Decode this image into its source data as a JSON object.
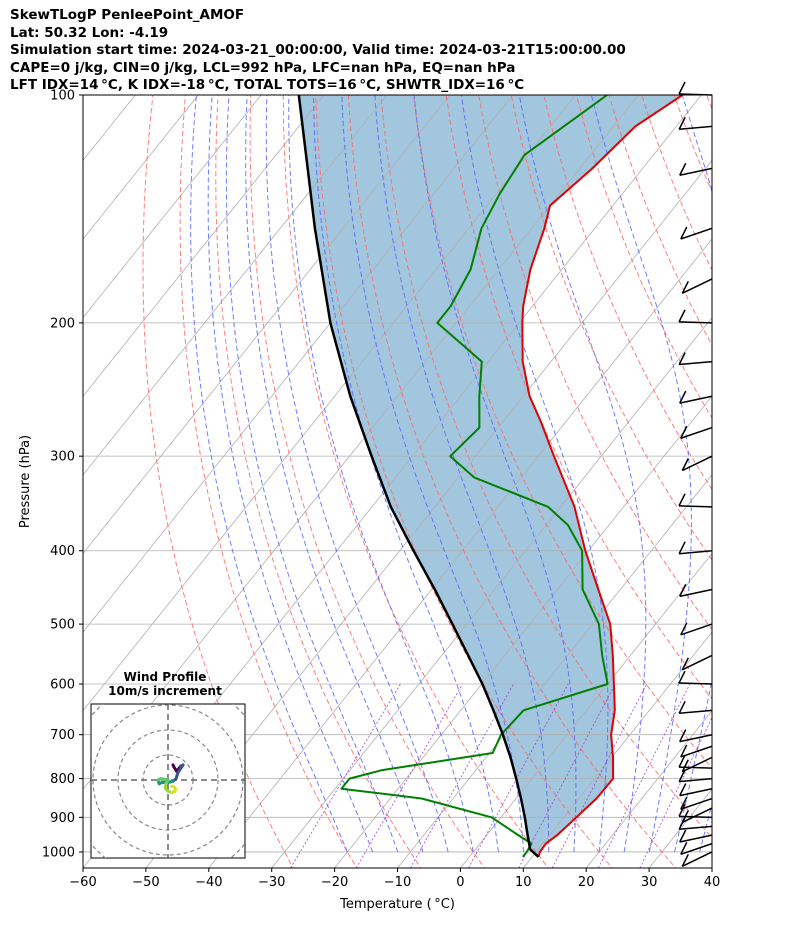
{
  "header": {
    "line1": "SkewTLogP PenleePoint_AMOF",
    "line2": "Lat: 50.32   Lon: -4.19",
    "line3": "Simulation start time: 2024-03-21_00:00:00, Valid time: 2024-03-21T15:00:00.00",
    "line4": "CAPE=0 j/kg, CIN=0 j/kg, LCL=992 hPa, LFC=nan hPa, EQ=nan hPa",
    "line5": "LFT IDX=14 °C, K IDX=-18 °C, TOTAL TOTS=16 °C, SHWTR_IDX=16 °C"
  },
  "chart_data": {
    "type": "line",
    "subtype": "skew-T log-P diagram",
    "xlabel": "Temperature ( °C)",
    "ylabel": "Pressure (hPa)",
    "xlim": [
      -60,
      40
    ],
    "ylim_hpa": [
      1050,
      100
    ],
    "y_scale": "log",
    "grid": true,
    "x_ticks": [
      "−60",
      "−50",
      "−40",
      "−30",
      "−20",
      "−10",
      "0",
      "10",
      "20",
      "30",
      "40"
    ],
    "y_ticks": [
      "100",
      "200",
      "300",
      "400",
      "500",
      "600",
      "700",
      "800",
      "900",
      "1000"
    ],
    "y_tick_values": [
      100,
      200,
      300,
      400,
      500,
      600,
      700,
      800,
      900,
      1000
    ],
    "colors": {
      "temperature": "#e00000",
      "dewpoint": "#008000",
      "parcel": "#000000",
      "shading": "#a3c6df",
      "dry_adiabat": "#ff6666",
      "moist_adiabat": "#5566ff",
      "mixing_ratio": "#9933cc",
      "grid": "#b0b0b0"
    },
    "series": [
      {
        "role": "temperature",
        "points": [
          [
            1015,
            11.0
          ],
          [
            1000,
            10.6
          ],
          [
            975,
            10.5
          ],
          [
            950,
            11.2
          ],
          [
            900,
            12.0
          ],
          [
            850,
            12.8
          ],
          [
            800,
            12.9
          ],
          [
            750,
            10.2
          ],
          [
            700,
            7.0
          ],
          [
            650,
            4.5
          ],
          [
            600,
            1.0
          ],
          [
            550,
            -2.8
          ],
          [
            500,
            -7.2
          ],
          [
            450,
            -13.5
          ],
          [
            400,
            -20.5
          ],
          [
            350,
            -27.8
          ],
          [
            300,
            -37.5
          ],
          [
            270,
            -44.0
          ],
          [
            250,
            -49.0
          ],
          [
            225,
            -54.5
          ],
          [
            200,
            -59.5
          ],
          [
            190,
            -61.5
          ],
          [
            170,
            -65.0
          ],
          [
            150,
            -68.0
          ],
          [
            140,
            -70.0
          ],
          [
            125,
            -68.0
          ],
          [
            110,
            -66.5
          ],
          [
            100,
            -63.0
          ]
        ]
      },
      {
        "role": "dewpoint",
        "points": [
          [
            1015,
            8.5
          ],
          [
            1000,
            8.5
          ],
          [
            975,
            8.2
          ],
          [
            950,
            5.0
          ],
          [
            900,
            -1.5
          ],
          [
            850,
            -15.0
          ],
          [
            825,
            -29.0
          ],
          [
            800,
            -29.0
          ],
          [
            780,
            -25.0
          ],
          [
            740,
            -9.5
          ],
          [
            700,
            -10.5
          ],
          [
            650,
            -10.0
          ],
          [
            600,
            0.0
          ],
          [
            550,
            -4.5
          ],
          [
            500,
            -9.0
          ],
          [
            450,
            -16.0
          ],
          [
            400,
            -21.0
          ],
          [
            370,
            -26.5
          ],
          [
            350,
            -32.0
          ],
          [
            320,
            -47.5
          ],
          [
            300,
            -54.0
          ],
          [
            275,
            -53.0
          ],
          [
            250,
            -57.0
          ],
          [
            225,
            -61.0
          ],
          [
            200,
            -73.0
          ],
          [
            190,
            -73.0
          ],
          [
            170,
            -74.5
          ],
          [
            150,
            -78.0
          ],
          [
            135,
            -79.5
          ],
          [
            120,
            -80.5
          ],
          [
            100,
            -75.0
          ]
        ]
      },
      {
        "role": "parcel",
        "points": [
          [
            1015,
            11.0
          ],
          [
            992,
            8.7
          ],
          [
            950,
            6.5
          ],
          [
            900,
            3.8
          ],
          [
            850,
            0.8
          ],
          [
            800,
            -2.5
          ],
          [
            750,
            -6.1
          ],
          [
            700,
            -10.2
          ],
          [
            650,
            -14.8
          ],
          [
            600,
            -19.9
          ],
          [
            550,
            -25.8
          ],
          [
            500,
            -32.3
          ],
          [
            450,
            -39.5
          ],
          [
            400,
            -47.8
          ],
          [
            350,
            -57.0
          ],
          [
            300,
            -66.5
          ],
          [
            250,
            -77.5
          ],
          [
            200,
            -90.0
          ],
          [
            150,
            -104.5
          ],
          [
            100,
            -124.0
          ]
        ]
      }
    ],
    "wind_barbs_levels_hpa": [
      1000,
      975,
      950,
      925,
      900,
      875,
      850,
      825,
      800,
      775,
      750,
      725,
      700,
      650,
      600,
      550,
      500,
      450,
      400,
      350,
      300,
      275,
      250,
      225,
      200,
      175,
      150,
      125,
      110,
      100
    ],
    "hodograph": {
      "title": "Wind Profile",
      "subtitle": "10m/s increment",
      "ring_increment_ms": 10,
      "path_uv": [
        [
          2.0,
          6.0
        ],
        [
          2.5,
          5.0
        ],
        [
          3.0,
          4.2
        ],
        [
          3.5,
          3.5
        ],
        [
          5.0,
          5.5
        ],
        [
          6.0,
          6.0
        ],
        [
          4.0,
          3.0
        ],
        [
          3.2,
          0.5
        ],
        [
          2.0,
          -0.5
        ],
        [
          0.0,
          -1.0
        ],
        [
          -2.5,
          -1.0
        ],
        [
          -3.5,
          -1.5
        ],
        [
          -4.0,
          0.0
        ],
        [
          -3.0,
          0.5
        ],
        [
          -1.5,
          0.3
        ],
        [
          0.0,
          0.0
        ],
        [
          -0.8,
          -1.5
        ],
        [
          -1.0,
          -2.5
        ],
        [
          -1.0,
          -3.5
        ],
        [
          0.0,
          -4.5
        ],
        [
          1.5,
          -5.0
        ],
        [
          2.8,
          -4.5
        ],
        [
          3.0,
          -3.5
        ],
        [
          2.5,
          -2.8
        ],
        [
          1.5,
          -2.5
        ]
      ],
      "colormap": [
        "#440154",
        "#3b528b",
        "#21918c",
        "#5ec962",
        "#9ad73f",
        "#d5e21c"
      ]
    }
  }
}
